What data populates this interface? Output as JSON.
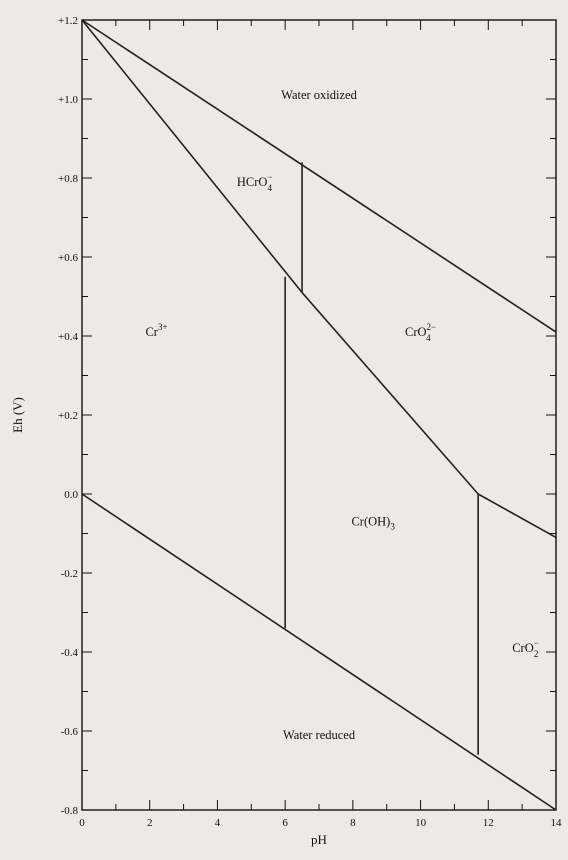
{
  "chart_data": {
    "type": "line",
    "xlabel": "pH",
    "ylabel": "Eh (V)",
    "xlim": [
      0,
      14
    ],
    "ylim": [
      -0.8,
      1.2
    ],
    "x_ticks": [
      "0",
      "2",
      "4",
      "6",
      "8",
      "10",
      "12",
      "14"
    ],
    "x_tick_values": [
      0,
      2,
      4,
      6,
      8,
      10,
      12,
      14
    ],
    "y_ticks": [
      "+1.2",
      "+1.0",
      "+0.8",
      "+0.6",
      "+0.4",
      "+0.2",
      "0.0",
      "-0.2",
      "-0.4",
      "-0.6",
      "-0.8"
    ],
    "y_tick_values": [
      1.2,
      1.0,
      0.8,
      0.6,
      0.4,
      0.2,
      0.0,
      -0.2,
      -0.4,
      -0.6,
      -0.8
    ],
    "grid": false,
    "boundaries": [
      {
        "id": "water-oxidized-line",
        "points": [
          [
            0,
            1.2
          ],
          [
            14,
            0.41
          ]
        ]
      },
      {
        "id": "water-reduced-line",
        "points": [
          [
            0,
            0.0
          ],
          [
            14,
            -0.8
          ]
        ]
      },
      {
        "id": "cr3-hcro4-line",
        "points": [
          [
            0,
            1.2
          ],
          [
            6.5,
            0.51
          ]
        ]
      },
      {
        "id": "cr3-croh3-upper-line",
        "points": [
          [
            6.5,
            0.51
          ],
          [
            11.7,
            0.0
          ]
        ]
      },
      {
        "id": "croh3-cro2-lower-line",
        "points": [
          [
            11.7,
            0.0
          ],
          [
            14,
            -0.11
          ]
        ]
      },
      {
        "id": "hcro4-cro4-line",
        "points": [
          [
            6.5,
            0.84
          ],
          [
            6.5,
            0.51
          ]
        ]
      },
      {
        "id": "cr3-croh3-line",
        "points": [
          [
            6.0,
            0.55
          ],
          [
            6.0,
            -0.34
          ]
        ]
      },
      {
        "id": "croh3-cro2-line",
        "points": [
          [
            11.7,
            0.0
          ],
          [
            11.7,
            -0.66
          ]
        ]
      }
    ],
    "regions": [
      {
        "id": "water-oxidized",
        "text": "Water oxidized",
        "x": 7.0,
        "y": 1.0
      },
      {
        "id": "hcro4",
        "base": "HCrO",
        "sub": "4",
        "sup": "−",
        "x": 5.1,
        "y": 0.78
      },
      {
        "id": "cr3",
        "base": "Cr",
        "sup": "3+",
        "x": 2.2,
        "y": 0.4
      },
      {
        "id": "cro4",
        "base": "CrO",
        "sub": "4",
        "sup": "2−",
        "x": 10.0,
        "y": 0.4
      },
      {
        "id": "croh3",
        "base": "Cr(OH)",
        "sub": "3",
        "x": 8.6,
        "y": -0.08
      },
      {
        "id": "cro2",
        "base": "CrO",
        "sub": "2",
        "sup": "−",
        "x": 13.1,
        "y": -0.4
      },
      {
        "id": "water-reduced",
        "text": "Water reduced",
        "x": 7.0,
        "y": -0.62
      }
    ]
  }
}
